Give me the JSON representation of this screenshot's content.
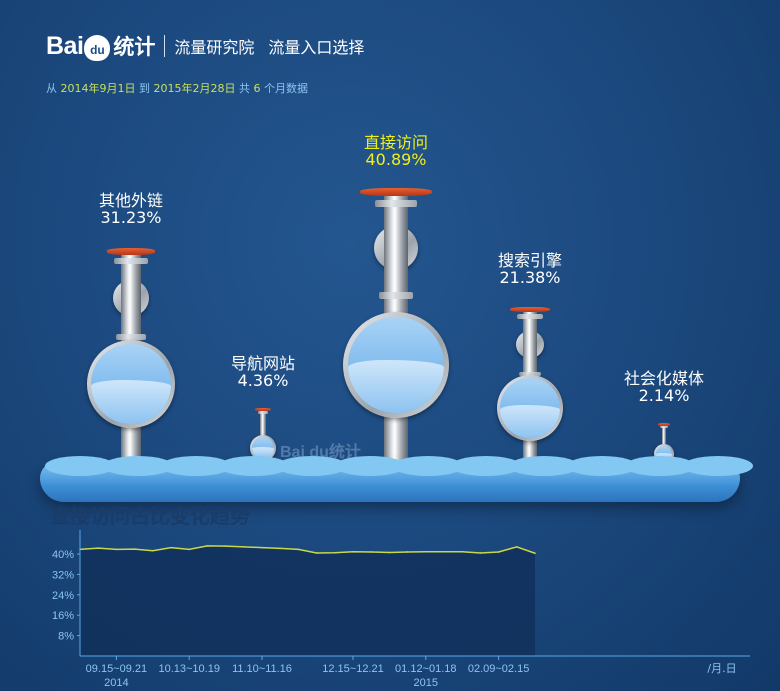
{
  "header": {
    "logo_text": "Bai",
    "logo_paw": "du",
    "logo_suffix": "统计",
    "nav1": "流量研究院",
    "nav2": "流量入口选择"
  },
  "range": {
    "from_label": "从",
    "from": "2014年9月1日",
    "to_label": "到",
    "to": "2015年2月28日",
    "total_label": "共",
    "months": "6",
    "suffix": "个月数据"
  },
  "watermark": "Bai du统计",
  "sources": [
    {
      "name": "其他外链",
      "percent": "31.23%",
      "highlight": false
    },
    {
      "name": "导航网站",
      "percent": "4.36%",
      "highlight": false
    },
    {
      "name": "直接访问",
      "percent": "40.89%",
      "highlight": true
    },
    {
      "name": "搜索引擎",
      "percent": "21.38%",
      "highlight": false
    },
    {
      "name": "社会化媒体",
      "percent": "2.14%",
      "highlight": false
    }
  ],
  "colors": {
    "highlight": "#f0f01a",
    "line": "#c8d84a",
    "axis": "#5aa8e8",
    "tick_text": "#8cc4f0",
    "handle": "#d9481f"
  },
  "chart_data": {
    "type": "area",
    "title": "直接访问占比变化趋势",
    "xlabel": "月.日",
    "x": [
      "09.01~09.07",
      "09.08~09.14",
      "09.15~09.21",
      "09.22~09.28",
      "09.29~10.05",
      "10.06~10.12",
      "10.13~10.19",
      "10.20~10.26",
      "10.27~11.02",
      "11.03~11.09",
      "11.10~11.16",
      "11.17~11.23",
      "11.24~11.30",
      "12.01~12.07",
      "12.08~12.14",
      "12.15~12.21",
      "12.22~12.28",
      "12.29~01.04",
      "01.05~01.11",
      "01.12~01.18",
      "01.19~01.25",
      "01.26~02.01",
      "02.02~02.08",
      "02.09~02.15",
      "02.16~02.22",
      "02.23~02.28"
    ],
    "values": [
      41.8,
      42.3,
      41.8,
      41.9,
      41.3,
      42.5,
      41.8,
      43.2,
      43.1,
      42.8,
      42.5,
      42.2,
      41.8,
      40.4,
      40.5,
      40.9,
      40.8,
      40.6,
      40.8,
      40.9,
      40.9,
      40.9,
      40.4,
      40.8,
      42.8,
      40.3
    ],
    "tick_labels": [
      "09.15~09.21",
      "10.13~10.19",
      "11.10~11.16",
      "12.15~12.21",
      "01.12~01.18",
      "02.09~02.15"
    ],
    "year_labels": [
      {
        "at": "09.15~09.21",
        "text": "2014"
      },
      {
        "at": "01.12~01.18",
        "text": "2015"
      }
    ],
    "yticks": [
      "8%",
      "16%",
      "24%",
      "32%",
      "40%"
    ],
    "ylim": [
      0,
      44
    ],
    "grid": false
  }
}
